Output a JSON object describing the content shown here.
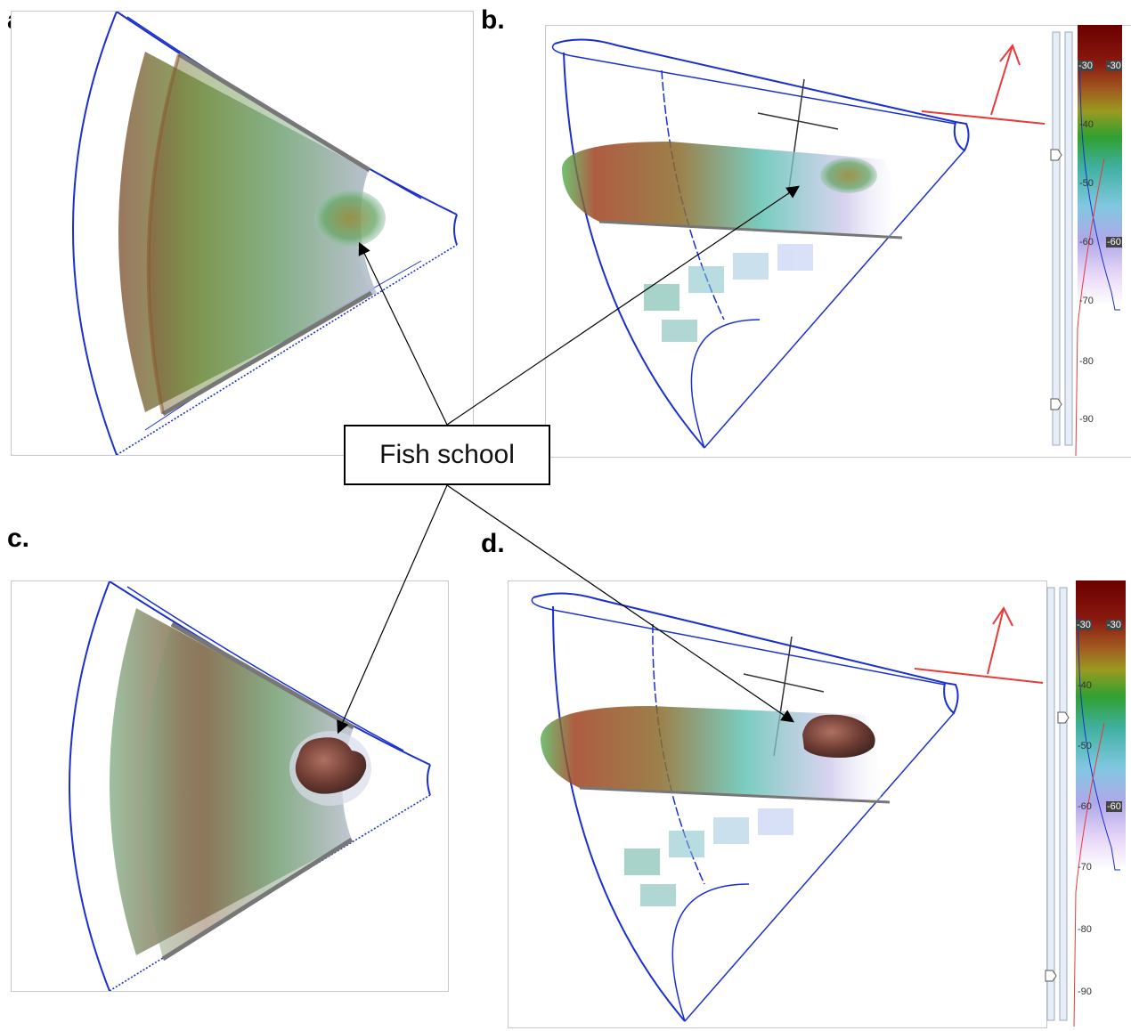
{
  "labels": {
    "a": "a.",
    "b": "b.",
    "c": "c.",
    "d": "d."
  },
  "callout": {
    "text": "Fish school"
  },
  "colorbar": {
    "ticks": [
      "-30",
      "-40",
      "-50",
      "-60",
      "-70",
      "-80",
      "-90"
    ],
    "highlight_top": "-30",
    "highlight_bottom": "-60"
  },
  "colors": {
    "beam_outline": "#1a2fd0",
    "arrow": "#000000",
    "axis_red": "#e83a3a",
    "school_dark": "#6b3a32"
  }
}
